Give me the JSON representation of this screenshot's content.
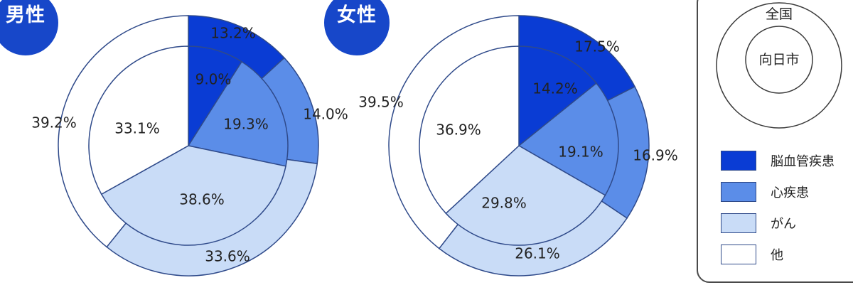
{
  "chart_data": [
    {
      "type": "pie",
      "title": "男性",
      "categories": [
        "脳血管疾患",
        "心疾患",
        "がん",
        "他"
      ],
      "series": [
        {
          "name": "全国",
          "values": [
            13.2,
            14.0,
            33.6,
            39.2
          ]
        },
        {
          "name": "向日市",
          "values": [
            9.0,
            19.3,
            38.6,
            33.1
          ]
        }
      ],
      "value_labels": {
        "全国": [
          "13.2%",
          "14.0%",
          "33.6%",
          "39.2%"
        ],
        "向日市": [
          "9.0%",
          "19.3%",
          "38.6%",
          "33.1%"
        ]
      }
    },
    {
      "type": "pie",
      "title": "女性",
      "categories": [
        "脳血管疾患",
        "心疾患",
        "がん",
        "他"
      ],
      "series": [
        {
          "name": "全国",
          "values": [
            17.5,
            16.9,
            26.1,
            39.5
          ]
        },
        {
          "name": "向日市",
          "values": [
            14.2,
            19.1,
            29.8,
            36.9
          ]
        }
      ],
      "value_labels": {
        "全国": [
          "17.5%",
          "16.9%",
          "26.1%",
          "39.5%"
        ],
        "向日市": [
          "14.2%",
          "19.1%",
          "29.8%",
          "36.9%"
        ]
      }
    }
  ],
  "legend": {
    "outer_label": "全国",
    "inner_label": "向日市",
    "items": [
      {
        "label": "脳血管疾患",
        "color": "#0a3cd4"
      },
      {
        "label": "心疾患",
        "color": "#5b8de8"
      },
      {
        "label": "がん",
        "color": "#c9dcf7"
      },
      {
        "label": "他",
        "color": "#ffffff"
      }
    ]
  },
  "colors": {
    "badge": "#1747c9",
    "outline": "#2f4a8a"
  }
}
